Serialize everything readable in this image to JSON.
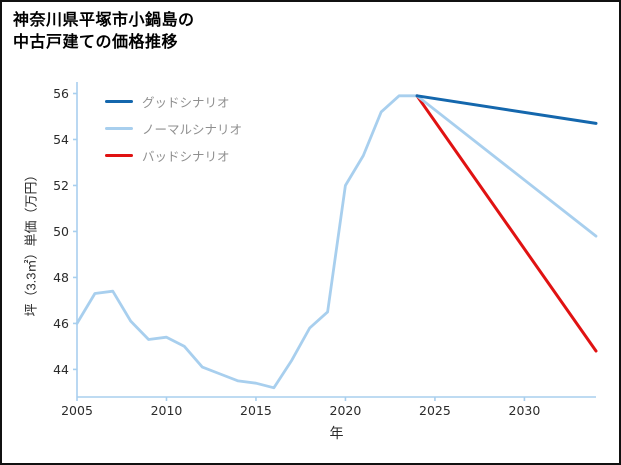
{
  "chart_data": {
    "type": "line",
    "title": "神奈川県平塚市小鍋島の中古戸建ての価格推移",
    "title_lines": [
      "神奈川県平塚市小鍋島の",
      "中古戸建ての価格推移"
    ],
    "xlabel": "年",
    "ylabel": "坪（3.3㎡）単価（万円）",
    "xlim": [
      2005,
      2034
    ],
    "ylim": [
      42.8,
      56.5
    ],
    "xticks": [
      2005,
      2010,
      2015,
      2020,
      2025,
      2030
    ],
    "yticks": [
      44,
      46,
      48,
      50,
      52,
      54,
      56
    ],
    "grid": false,
    "legend_position": "upper-left",
    "colors": {
      "axis": "#a8cfee",
      "tick_label": "#2b2b2b",
      "legend_text": "#8f8f8f"
    },
    "series": [
      {
        "name": "グッドシナリオ",
        "key": "good",
        "color": "#1467ad",
        "width": 3,
        "x": [
          2024,
          2034
        ],
        "y": [
          55.9,
          54.7
        ]
      },
      {
        "name": "ノーマルシナリオ",
        "key": "normal",
        "color": "#a8cfee",
        "width": 2.8,
        "x": [
          2005,
          2006,
          2007,
          2008,
          2009,
          2010,
          2011,
          2012,
          2013,
          2014,
          2015,
          2016,
          2017,
          2018,
          2019,
          2020,
          2021,
          2022,
          2023,
          2024,
          2034
        ],
        "y": [
          46.0,
          47.3,
          47.4,
          46.1,
          45.3,
          45.4,
          45.0,
          44.1,
          43.8,
          43.5,
          43.4,
          43.2,
          44.4,
          45.8,
          46.5,
          52.0,
          53.3,
          55.2,
          55.9,
          55.9,
          49.8
        ]
      },
      {
        "name": "バッドシナリオ",
        "key": "bad",
        "color": "#e01212",
        "width": 3,
        "x": [
          2024,
          2034
        ],
        "y": [
          55.9,
          44.8
        ]
      }
    ]
  }
}
